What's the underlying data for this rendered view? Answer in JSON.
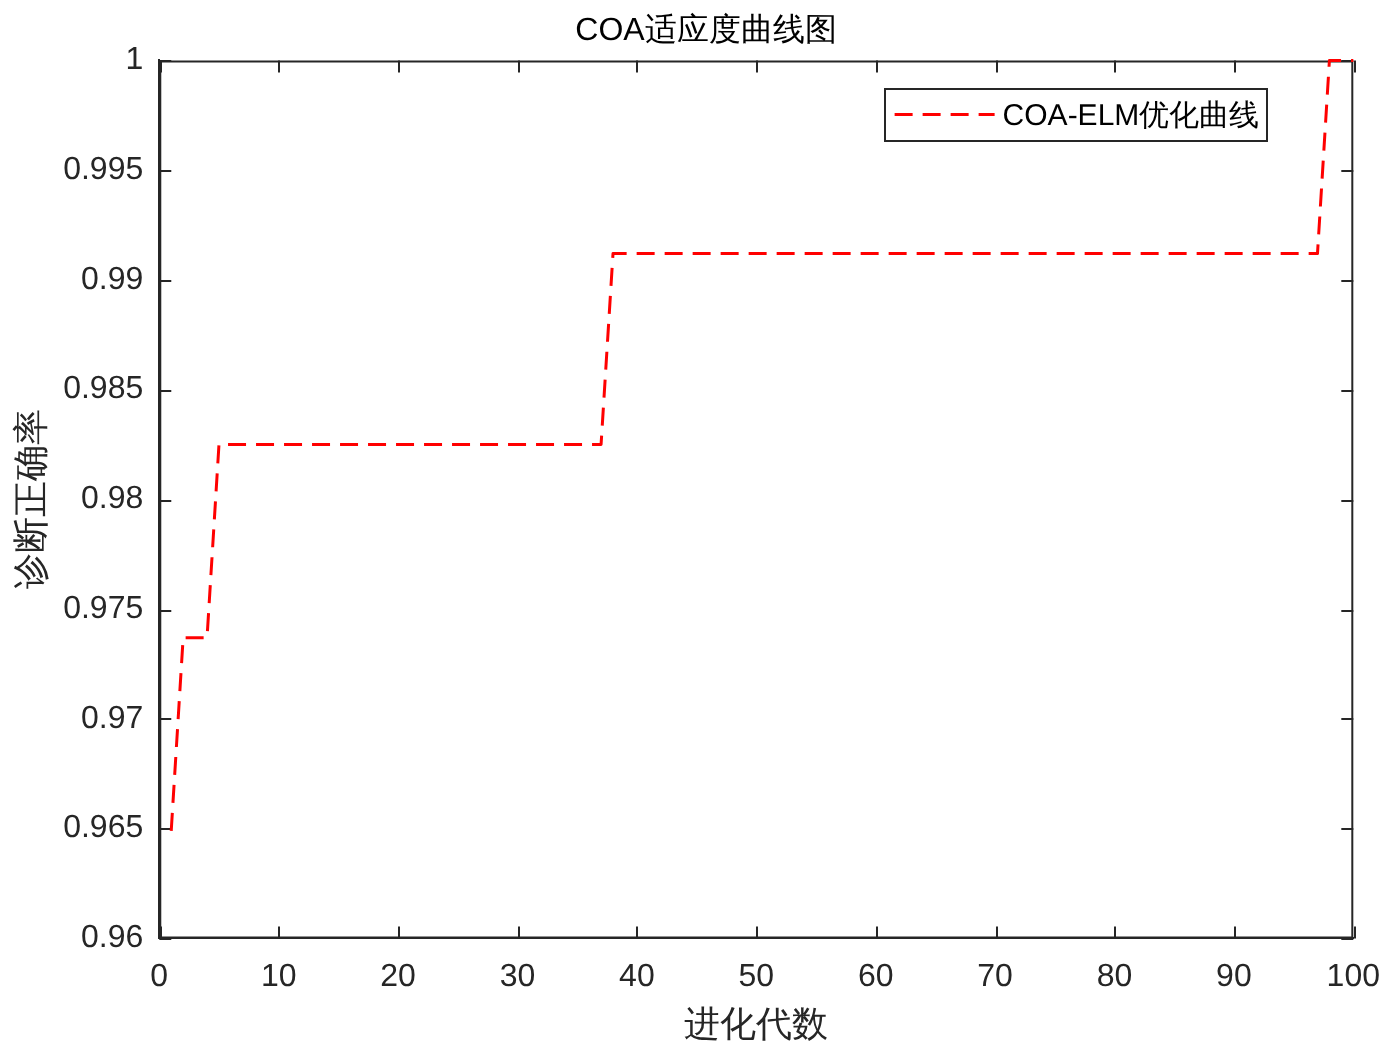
{
  "chart_data": {
    "type": "line",
    "title": "COA适应度曲线图",
    "xlabel": "进化代数",
    "ylabel": "诊断正确率",
    "x": [
      1,
      2,
      4,
      5,
      37,
      38,
      97,
      98,
      100
    ],
    "series": [
      {
        "name": "COA-ELM优化曲线",
        "color": "#ff0000",
        "values": [
          0.9649,
          0.9737,
          0.9737,
          0.9825,
          0.9825,
          0.9912,
          0.9912,
          1,
          1
        ]
      }
    ],
    "xlim": [
      0,
      100
    ],
    "xticks": [
      0,
      10,
      20,
      30,
      40,
      50,
      60,
      70,
      80,
      90,
      100
    ],
    "ylim": [
      0.96,
      1
    ],
    "yticks": [
      0.96,
      0.965,
      0.97,
      0.975,
      0.98,
      0.985,
      0.99,
      0.995,
      1
    ],
    "grid": false,
    "legend": "top right",
    "marker": "none",
    "line_style": "dashed"
  }
}
